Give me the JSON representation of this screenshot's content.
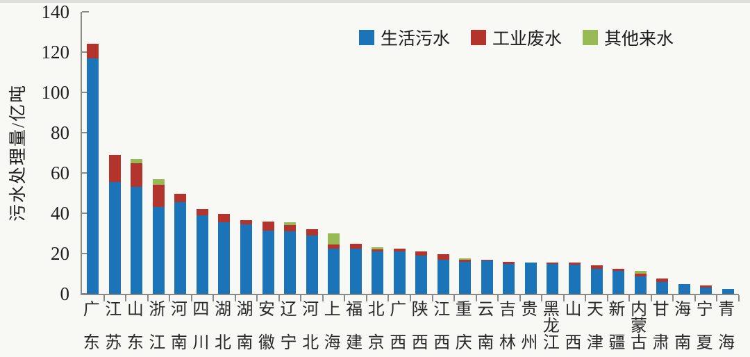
{
  "figure": {
    "background": "#f8f8f5",
    "axis_color": "#8a8a86",
    "text_color": "#1c1c1c"
  },
  "y_axis": {
    "title": "污水处理量/亿吨",
    "ticks": [
      0,
      20,
      40,
      60,
      80,
      100,
      120,
      140
    ]
  },
  "chart_data": {
    "type": "bar",
    "stacked": true,
    "title": "",
    "xlabel": "",
    "ylabel": "污水处理量/亿吨",
    "ylim": [
      0,
      140
    ],
    "grid": false,
    "legend_position": "top",
    "categories": [
      "广东",
      "江苏",
      "山东",
      "浙江",
      "河南",
      "四川",
      "湖北",
      "湖南",
      "安徽",
      "辽宁",
      "河北",
      "上海",
      "福建",
      "北京",
      "广西",
      "陕西",
      "江西",
      "重庆",
      "云南",
      "吉林",
      "贵州",
      "黑龙江",
      "山西",
      "天津",
      "新疆",
      "内蒙古",
      "甘肃",
      "海南",
      "宁夏",
      "青海"
    ],
    "series": [
      {
        "name": "生活污水",
        "color": "#1b73b8",
        "values": [
          117,
          55.5,
          53,
          43,
          45.5,
          39,
          35.5,
          34.5,
          31.5,
          31,
          29,
          22.5,
          22.5,
          21,
          21,
          19,
          17,
          16,
          16.5,
          15,
          15.5,
          15,
          14.5,
          12.5,
          11.5,
          8.5,
          6,
          5,
          3,
          2.5
        ]
      },
      {
        "name": "工业废水",
        "color": "#b3342c",
        "values": [
          7,
          13.5,
          12,
          11,
          4,
          3,
          4,
          2,
          4.5,
          3,
          3,
          2,
          2.5,
          1.2,
          1.5,
          2,
          2.5,
          1,
          0.5,
          1,
          0,
          0.5,
          1,
          1.5,
          1,
          1.5,
          1.5,
          0,
          1,
          0
        ]
      },
      {
        "name": "其他来水",
        "color": "#97ba55",
        "values": [
          0,
          0,
          2,
          3,
          0,
          0,
          0,
          0,
          0,
          1.5,
          0,
          5.5,
          0,
          0.8,
          0,
          0,
          0,
          0.7,
          0,
          0,
          0,
          0,
          0,
          0,
          0,
          1.5,
          0,
          0,
          0,
          0
        ]
      }
    ]
  }
}
